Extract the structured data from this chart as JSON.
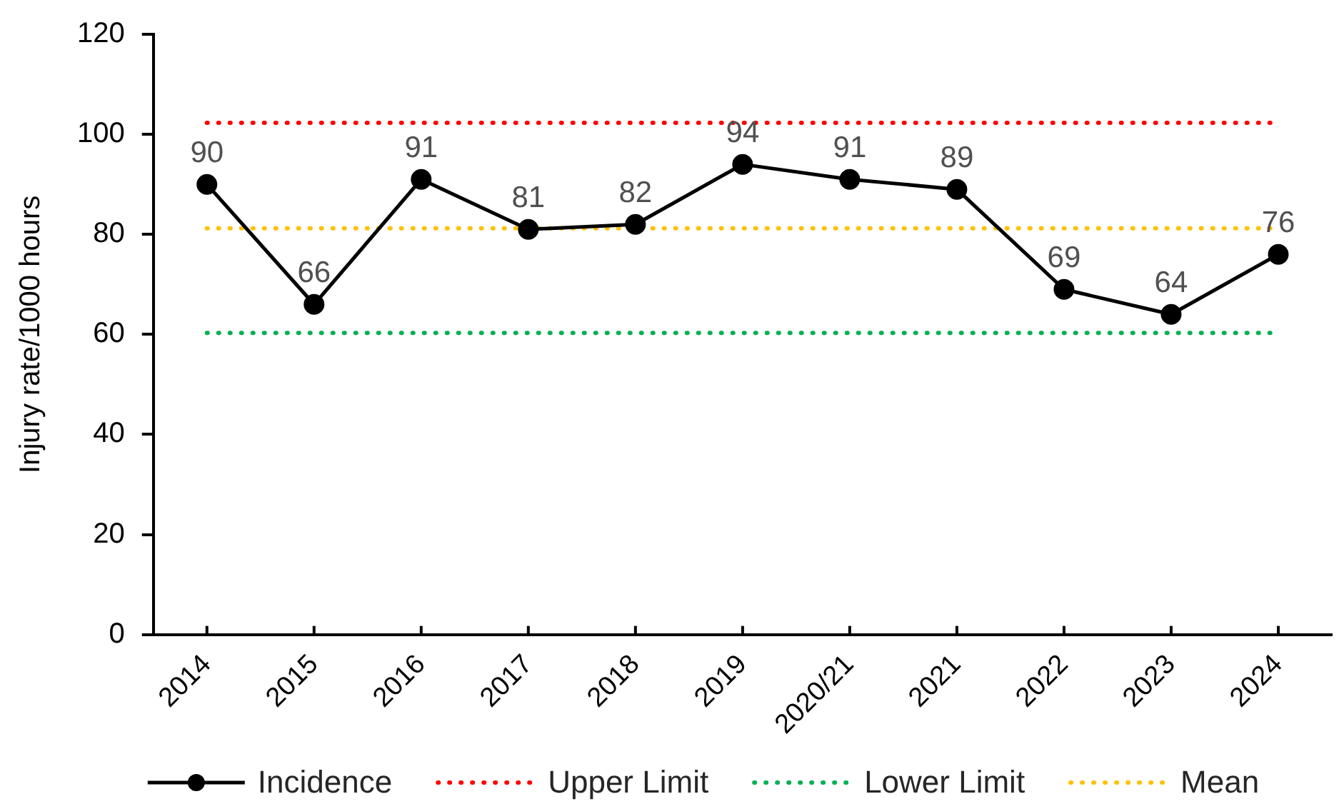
{
  "chart_data": {
    "type": "line",
    "categories": [
      "2014",
      "2015",
      "2016",
      "2017",
      "2018",
      "2019",
      "2020/21",
      "2021",
      "2022",
      "2023",
      "2024"
    ],
    "series": [
      {
        "name": "Incidence",
        "color": "#000000",
        "marker": "circle",
        "line_style": "solid",
        "values": [
          90,
          66,
          91,
          81,
          82,
          94,
          91,
          89,
          69,
          64,
          76
        ],
        "value_labels": [
          "90",
          "66",
          "91",
          "81",
          "82",
          "94",
          "91",
          "89",
          "69",
          "64",
          "76"
        ]
      },
      {
        "name": "Upper Limit",
        "color": "#ff0000",
        "marker": "none",
        "line_style": "dotted",
        "values": [
          102.3,
          102.3,
          102.3,
          102.3,
          102.3,
          102.3,
          102.3,
          102.3,
          102.3,
          102.3,
          102.3
        ]
      },
      {
        "name": "Lower Limit",
        "color": "#00b050",
        "marker": "none",
        "line_style": "dotted",
        "values": [
          60.3,
          60.3,
          60.3,
          60.3,
          60.3,
          60.3,
          60.3,
          60.3,
          60.3,
          60.3,
          60.3
        ]
      },
      {
        "name": "Mean",
        "color": "#ffc000",
        "marker": "none",
        "line_style": "dotted",
        "values": [
          81.2,
          81.2,
          81.2,
          81.2,
          81.2,
          81.2,
          81.2,
          81.2,
          81.2,
          81.2,
          81.2
        ]
      }
    ],
    "ylabel": "Injury rate/1000 hours",
    "ylim": [
      0,
      120
    ],
    "yticks": [
      0,
      20,
      40,
      60,
      80,
      100,
      120
    ],
    "grid": false,
    "legend": "bottom"
  }
}
